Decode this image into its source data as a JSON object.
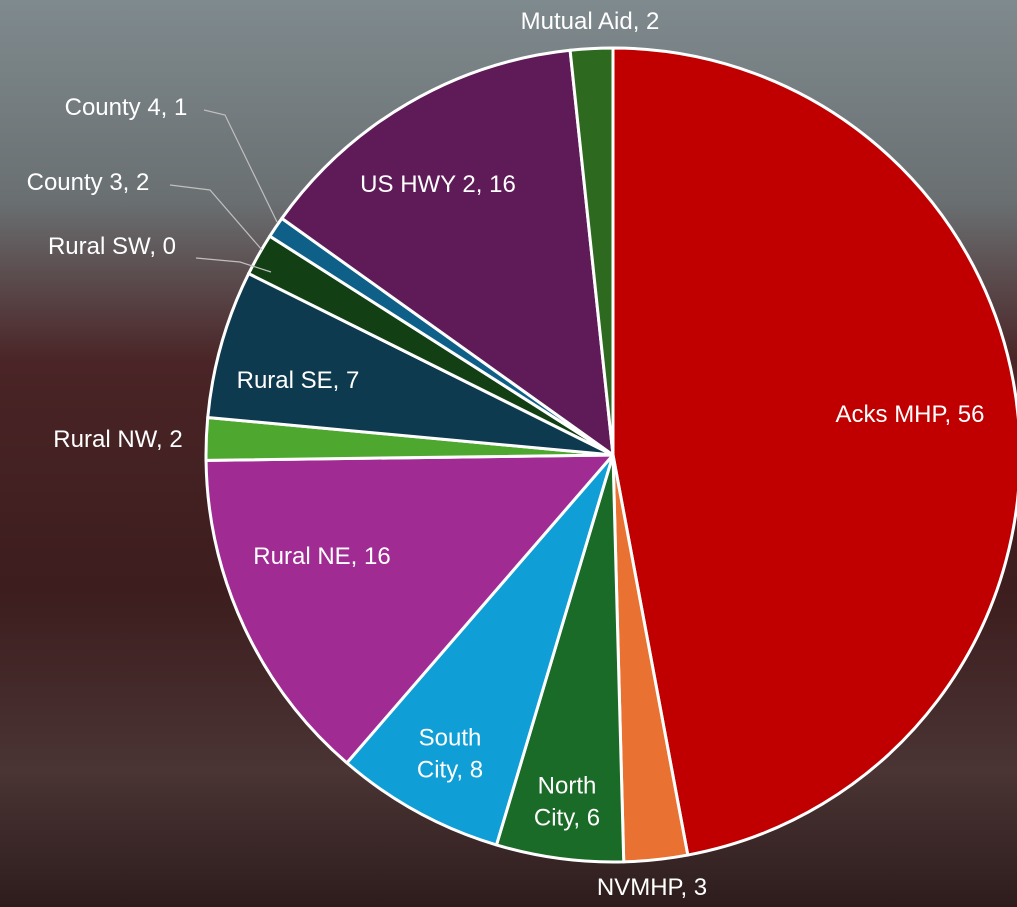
{
  "chart_data": {
    "type": "pie",
    "categories": [
      "Acks MHP",
      "NVMHP",
      "North City",
      "South City",
      "Rural NE",
      "Rural NW",
      "Rural SE",
      "Rural SW",
      "County 3",
      "County 4",
      "US HWY 2",
      "Mutual Aid"
    ],
    "values": [
      56,
      3,
      6,
      8,
      16,
      2,
      7,
      0,
      2,
      1,
      16,
      2
    ],
    "colors": [
      "#c00000",
      "#e97132",
      "#1b6b28",
      "#0f9ed5",
      "#a02b93",
      "#4ea72e",
      "#0e3a4f",
      "#174a6a",
      "#123f14",
      "#0f6089",
      "#5f1a58",
      "#2d6a1f"
    ]
  }
}
